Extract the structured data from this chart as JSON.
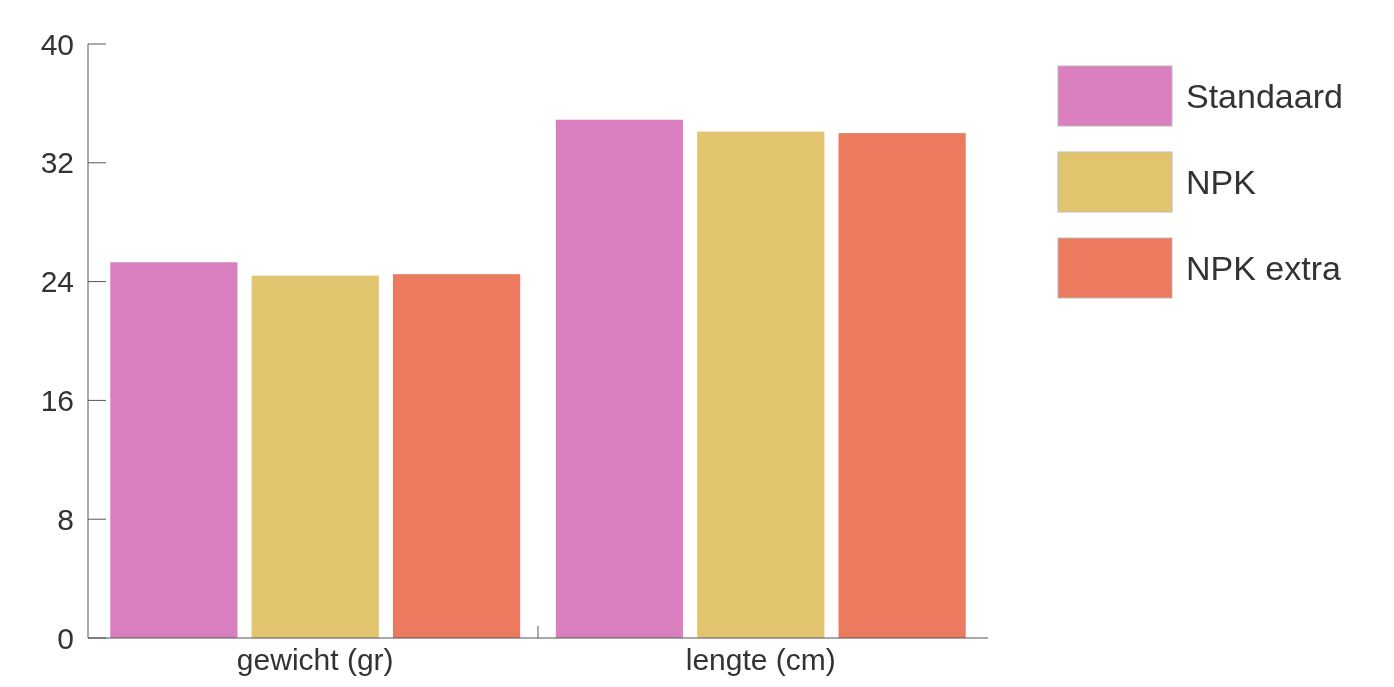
{
  "chart_data": {
    "type": "bar",
    "categories": [
      "gewicht (gr)",
      "lengte (cm)"
    ],
    "series": [
      {
        "name": "Standaard",
        "color": "#d97fbf",
        "values": [
          25.3,
          34.9
        ]
      },
      {
        "name": "NPK",
        "color": "#e3c46e",
        "values": [
          24.4,
          34.1
        ]
      },
      {
        "name": "NPK extra",
        "color": "#eb7a5e",
        "values": [
          24.5,
          34.0
        ]
      }
    ],
    "ylim": [
      0,
      40
    ],
    "yticks": [
      0,
      8,
      16,
      24,
      32,
      40
    ],
    "grid": false,
    "legend": "right"
  }
}
